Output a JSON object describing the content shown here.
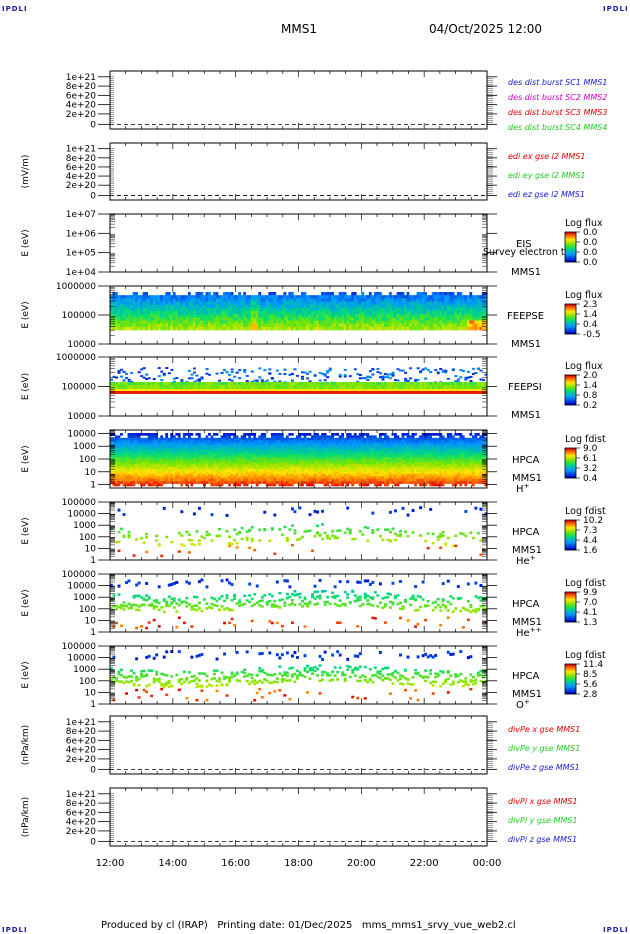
{
  "corner_label": "IPDLI",
  "header": {
    "mission": "MMS1",
    "datetime": "04/Oct/2025 12:00"
  },
  "footer": {
    "text": "Produced by cl (IRAP)   Printing date: 01/Dec/2025   mms_mms1_srvy_vue_web2.cl"
  },
  "colors": {
    "blue": "#1a1acc",
    "magenta": "#cc00cc",
    "red": "#dd0000",
    "green": "#22cc22"
  },
  "chart_data": [
    {
      "type": "line",
      "panel": "des-dist-burst",
      "y_ticks": [
        "1e+21",
        "8e+20",
        "6e+20",
        "4e+20",
        "2e+20",
        "0"
      ],
      "series": [
        {
          "name": "des dist burst SC1 MMS1",
          "color": "#1a1acc",
          "values": []
        },
        {
          "name": "des dist burst SC2 MMS2",
          "color": "#cc00cc",
          "values": []
        },
        {
          "name": "des dist burst SC3 MMS3",
          "color": "#dd0000",
          "values": []
        },
        {
          "name": "des dist burst SC4 MMS4",
          "color": "#22cc22",
          "values": []
        }
      ]
    },
    {
      "type": "line",
      "panel": "edi-e-gse",
      "ylabel": "(mV/m)",
      "y_ticks": [
        "1e+21",
        "8e+20",
        "6e+20",
        "4e+20",
        "2e+20",
        "0"
      ],
      "series": [
        {
          "name": "edi ex gse l2 MMS1",
          "color": "#dd0000",
          "values": []
        },
        {
          "name": "edi ey gse l2 MMS1",
          "color": "#22cc22",
          "values": []
        },
        {
          "name": "edi ez gse l2 MMS1",
          "color": "#1a1acc",
          "values": []
        }
      ]
    },
    {
      "type": "heatmap",
      "panel": "eis",
      "ylabel": "E (eV)",
      "y_ticks": [
        "1e+07",
        "1e+06",
        "1e+05",
        "1e+04"
      ],
      "labels": [
        "EIS",
        "MMS1"
      ],
      "overlay_text": "Survey electron to",
      "colorbar": {
        "title": "Log flux",
        "ticks": [
          "0.0",
          "0.0",
          "0.0",
          "0.0"
        ]
      }
    },
    {
      "type": "heatmap",
      "panel": "feeps-e",
      "ylabel": "E (eV)",
      "y_ticks": [
        "1000000",
        "100000",
        "10000"
      ],
      "labels": [
        "FEEPSE",
        "MMS1"
      ],
      "colorbar": {
        "title": "Log flux",
        "ticks": [
          "2.3",
          "1.4",
          "0.4",
          "-0.5"
        ]
      }
    },
    {
      "type": "heatmap",
      "panel": "feeps-i",
      "ylabel": "E (eV)",
      "y_ticks": [
        "1000000",
        "100000",
        "10000"
      ],
      "labels": [
        "FEEPSI",
        "MMS1"
      ],
      "colorbar": {
        "title": "Log flux",
        "ticks": [
          "2.0",
          "1.4",
          "0.8",
          "0.2"
        ]
      }
    },
    {
      "type": "heatmap",
      "panel": "hpca-h",
      "ylabel": "E (eV)",
      "y_ticks": [
        "10000",
        "1000",
        "100",
        "10",
        "1"
      ],
      "labels": [
        "HPCA",
        "MMS1",
        "H+"
      ],
      "colorbar": {
        "title": "Log fdist",
        "ticks": [
          "9.0",
          "6.1",
          "3.2",
          "0.4"
        ]
      }
    },
    {
      "type": "heatmap",
      "panel": "hpca-he",
      "ylabel": "E (eV)",
      "y_ticks": [
        "100000",
        "10000",
        "1000",
        "100",
        "10",
        "1"
      ],
      "labels": [
        "HPCA",
        "MMS1",
        "He+"
      ],
      "colorbar": {
        "title": "Log fdist",
        "ticks": [
          "10.2",
          "7.3",
          "4.4",
          "1.6"
        ]
      }
    },
    {
      "type": "heatmap",
      "panel": "hpca-hepp",
      "ylabel": "E (eV)",
      "y_ticks": [
        "100000",
        "10000",
        "1000",
        "100",
        "10",
        "1"
      ],
      "labels": [
        "HPCA",
        "MMS1",
        "He++"
      ],
      "colorbar": {
        "title": "Log fdist",
        "ticks": [
          "9.9",
          "7.0",
          "4.1",
          "1.3"
        ]
      }
    },
    {
      "type": "heatmap",
      "panel": "hpca-o",
      "ylabel": "E (eV)",
      "y_ticks": [
        "100000",
        "10000",
        "1000",
        "100",
        "10",
        "1"
      ],
      "labels": [
        "HPCA",
        "MMS1",
        "O+"
      ],
      "colorbar": {
        "title": "Log fdist",
        "ticks": [
          "11.4",
          "8.5",
          "5.6",
          "2.8"
        ]
      }
    },
    {
      "type": "line",
      "panel": "divpe",
      "ylabel": "(nPa/km)",
      "y_ticks": [
        "1e+21",
        "8e+20",
        "6e+20",
        "4e+20",
        "2e+20",
        "0"
      ],
      "series": [
        {
          "name": "divPe x gse MMS1",
          "color": "#dd0000",
          "values": []
        },
        {
          "name": "divPe y gse MMS1",
          "color": "#22cc22",
          "values": []
        },
        {
          "name": "divPe z gse MMS1",
          "color": "#1a1acc",
          "values": []
        }
      ]
    },
    {
      "type": "line",
      "panel": "divpi",
      "ylabel": "(nPa/km)",
      "y_ticks": [
        "1e+21",
        "8e+20",
        "6e+20",
        "4e+20",
        "2e+20",
        "0"
      ],
      "series": [
        {
          "name": "divPi x gse MMS1",
          "color": "#dd0000",
          "values": []
        },
        {
          "name": "divPi y gse MMS1",
          "color": "#22cc22",
          "values": []
        },
        {
          "name": "divPi z gse MMS1",
          "color": "#1a1acc",
          "values": []
        }
      ]
    }
  ],
  "x_ticks": [
    "12:00",
    "14:00",
    "16:00",
    "18:00",
    "20:00",
    "22:00",
    "00:00"
  ]
}
